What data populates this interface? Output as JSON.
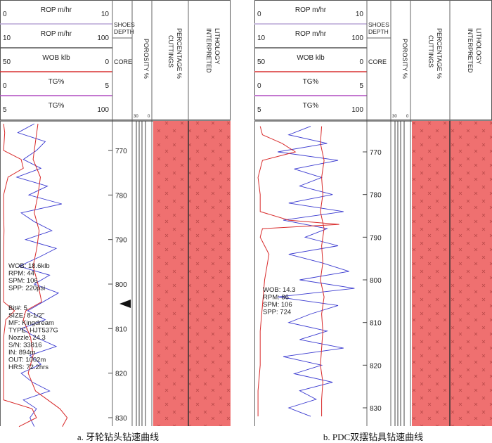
{
  "colors": {
    "fill": "#ef7070",
    "cross": "#b84848",
    "blue": "#3a3ad0",
    "red": "#d82a2a",
    "grid": "#999999"
  },
  "panels": [
    {
      "caption": "a. 牙轮钻头钻速曲线",
      "header_rows": [
        {
          "label": "ROP m/hr",
          "left": "0",
          "right": "10"
        },
        {
          "label": "ROP m/hr",
          "left": "10",
          "right": "100"
        },
        {
          "label": "WOB klb",
          "left": "50",
          "right": "0"
        },
        {
          "label": "TG%",
          "left": "0",
          "right": "5"
        },
        {
          "label": "TG%",
          "left": "5",
          "right": "100"
        }
      ],
      "shoes": "SHOES DEPTH",
      "core": "CORE",
      "porosity": "POROSITY %",
      "por_left": "30",
      "por_right": "0",
      "cuttings": "CUTTINGS PERCENTAGE %",
      "lithology": "INTERPRETED LITHOLOGY",
      "notes": [
        [
          "WOB: 18.6klb",
          "RPM: 44",
          "SPM: 106",
          "SPP: 220psi"
        ],
        [
          "Bit#: 5",
          "SIZE: 8-1/2\"",
          "MF: Kingdream",
          "TYPE: HJT537G",
          "Nozzle: 24.3",
          "S/N: 33816",
          "IN: 894m",
          "OUT: 1002m",
          "HRS: 72.2hrs"
        ]
      ]
    },
    {
      "caption": "b. PDC双摆钻具钻速曲线",
      "header_rows": [
        {
          "label": "ROP m/hr",
          "left": "0",
          "right": "10"
        },
        {
          "label": "ROP m/hr",
          "left": "10",
          "right": "100"
        },
        {
          "label": "WOB klb",
          "left": "50",
          "right": "0"
        },
        {
          "label": "TG%",
          "left": "0",
          "right": "5"
        },
        {
          "label": "TG%",
          "left": "5",
          "right": "100"
        }
      ],
      "shoes": "SHOES DEPTH",
      "core": "CORE",
      "porosity": "POROSITY %",
      "por_left": "30",
      "por_right": "0",
      "cuttings": "CUTTINGS PERCENTAGE %",
      "lithology": "INTERPRETED LITHOLOGY",
      "notes": [
        [
          "WOB: 14.3",
          "RPM: 86",
          "SPM: 106",
          "SPP: 724"
        ]
      ]
    }
  ],
  "chart_data": [
    {
      "type": "line",
      "title": "牙轮钻头钻速曲线 (mud log)",
      "depth_axis": {
        "ticks": [
          770,
          780,
          790,
          800,
          810,
          820,
          830
        ],
        "range": [
          764,
          833
        ]
      },
      "cuttings_percentage": 100,
      "series": [
        {
          "name": "ROP m/hr (0-10)",
          "color": "blue",
          "x_range": [
            0,
            10
          ],
          "depth": [
            764,
            766,
            768,
            770,
            772,
            774,
            776,
            778,
            780,
            782,
            784,
            786,
            788,
            790,
            792,
            794,
            796,
            798,
            800,
            802,
            804,
            806,
            808,
            810,
            812,
            814,
            816,
            818,
            820,
            822,
            824,
            826,
            828,
            830,
            832
          ],
          "values": [
            3.0,
            1.5,
            4.0,
            3.2,
            2.0,
            3.6,
            1.4,
            4.2,
            2.5,
            5.5,
            1.8,
            3.0,
            4.6,
            2.2,
            5.0,
            3.4,
            1.6,
            4.4,
            3.0,
            5.2,
            3.8,
            2.4,
            4.0,
            1.8,
            3.2,
            5.0,
            2.6,
            3.6,
            1.8,
            2.8,
            4.4,
            2.0,
            3.2,
            2.6,
            3.0
          ]
        },
        {
          "name": "ROP m/hr (10-100)",
          "color": "red",
          "x_range": [
            10,
            100
          ],
          "depth": [
            764,
            768,
            772,
            776,
            780,
            784,
            788,
            792,
            796,
            800,
            804,
            806,
            808,
            812,
            816,
            820,
            824,
            826,
            828,
            830,
            832
          ],
          "values": [
            40,
            38,
            36,
            42,
            40,
            37,
            41,
            39,
            36,
            40,
            43,
            30,
            28,
            34,
            36,
            32,
            38,
            48,
            58,
            64,
            60
          ]
        },
        {
          "name": "TG%",
          "color": "red",
          "x_range": [
            0,
            5
          ],
          "depth": [
            764,
            766,
            770,
            772,
            774,
            776,
            780,
            784,
            788,
            792,
            796,
            800,
            804,
            806,
            808,
            812,
            816,
            820,
            826,
            828,
            830,
            832
          ],
          "values": [
            0.1,
            0.15,
            0.1,
            0.9,
            1.0,
            0.3,
            0.1,
            0.1,
            0.12,
            0.1,
            0.1,
            0.1,
            0.1,
            0.6,
            0.2,
            0.1,
            0.1,
            0.1,
            0.1,
            1.4,
            1.6,
            0.8
          ]
        }
      ]
    },
    {
      "type": "line",
      "title": "PDC双摆钻具钻速曲线 (mud log)",
      "depth_axis": {
        "ticks": [
          770,
          780,
          790,
          800,
          810,
          820,
          830
        ],
        "range": [
          764,
          833
        ]
      },
      "cuttings_percentage": 100,
      "series": [
        {
          "name": "ROP m/hr (0-10)",
          "color": "blue",
          "x_range": [
            0,
            10
          ],
          "depth": [
            764,
            766,
            768,
            770,
            772,
            774,
            776,
            778,
            780,
            782,
            784,
            786,
            788,
            790,
            792,
            794,
            796,
            798,
            800,
            802,
            804,
            806,
            808,
            810,
            812,
            814,
            816,
            818,
            820,
            822,
            824,
            826,
            828,
            830,
            832
          ],
          "values": [
            5.0,
            3.0,
            6.5,
            2.0,
            7.5,
            3.5,
            6.0,
            4.0,
            7.0,
            3.0,
            8.0,
            2.5,
            6.5,
            4.5,
            7.5,
            3.0,
            6.0,
            8.5,
            4.0,
            9.0,
            2.0,
            7.5,
            5.0,
            3.0,
            6.5,
            4.0,
            8.0,
            2.5,
            6.0,
            3.5,
            7.0,
            4.0,
            5.5,
            3.0,
            5.0
          ]
        },
        {
          "name": "ROP m/hr (10-100)",
          "color": "red",
          "x_range": [
            10,
            100
          ],
          "depth": [
            764,
            768,
            772,
            776,
            780,
            784,
            788,
            792,
            796,
            800,
            804,
            808,
            812,
            816,
            820,
            824,
            828,
            832
          ],
          "values": [
            64,
            63,
            66,
            64,
            65,
            63,
            66,
            64,
            65,
            63,
            66,
            64,
            65,
            64,
            63,
            65,
            64,
            64
          ]
        },
        {
          "name": "TG%",
          "color": "red",
          "x_range": [
            0,
            5
          ],
          "depth": [
            764,
            766,
            768,
            770,
            772,
            776,
            780,
            784,
            786,
            787,
            788,
            790,
            794,
            800,
            806,
            812,
            820,
            826,
            832
          ],
          "values": [
            0.2,
            0.3,
            1.2,
            1.8,
            0.3,
            0.1,
            0.2,
            0.2,
            1.5,
            3.8,
            0.3,
            0.2,
            0.6,
            0.4,
            0.3,
            0.2,
            0.2,
            0.1,
            0.1
          ]
        }
      ]
    }
  ]
}
